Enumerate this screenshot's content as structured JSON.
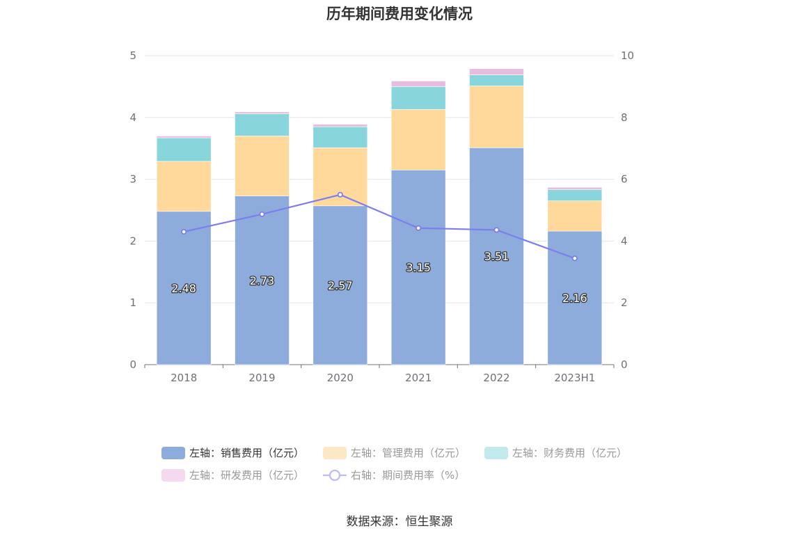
{
  "chart_data": {
    "type": "bar",
    "stacked": true,
    "title": "历年期间费用变化情况",
    "categories": [
      "2018",
      "2019",
      "2020",
      "2021",
      "2022",
      "2023H1"
    ],
    "y_left": {
      "range": [
        0,
        5
      ],
      "ticks": [
        "0",
        "1",
        "2",
        "3",
        "4",
        "5"
      ]
    },
    "y_right": {
      "range": [
        0,
        10
      ],
      "ticks": [
        "0",
        "2",
        "4",
        "6",
        "8",
        "10"
      ]
    },
    "grid": true,
    "series": [
      {
        "name": "左轴：销售费用（亿元）",
        "type": "bar",
        "axis": "left",
        "color": "#8eacdb",
        "values": [
          2.48,
          2.73,
          2.57,
          3.15,
          3.51,
          2.16
        ],
        "labels": [
          "2.48",
          "2.73",
          "2.57",
          "3.15",
          "3.51",
          "2.16"
        ]
      },
      {
        "name": "左轴：管理费用（亿元）",
        "type": "bar",
        "axis": "left",
        "color": "#ffd99b",
        "values": [
          0.81,
          0.97,
          0.94,
          0.98,
          1.0,
          0.49
        ]
      },
      {
        "name": "左轴：财务费用（亿元）",
        "type": "bar",
        "axis": "left",
        "color": "#88d6db",
        "values": [
          0.38,
          0.36,
          0.34,
          0.37,
          0.18,
          0.18
        ]
      },
      {
        "name": "左轴：研发费用（亿元）",
        "type": "bar",
        "axis": "left",
        "color": "#e6bde0",
        "values": [
          0.03,
          0.03,
          0.04,
          0.09,
          0.1,
          0.04
        ]
      },
      {
        "name": "右轴：期间费用率（%）",
        "type": "line",
        "axis": "right",
        "color": "#7b7ef0",
        "values": [
          4.3,
          4.87,
          5.5,
          4.42,
          4.36,
          3.44
        ]
      }
    ],
    "legend": {
      "position": "bottom",
      "items": [
        {
          "label": "左轴：销售费用（亿元）",
          "color": "#8eacdb",
          "shape": "rect",
          "active": true
        },
        {
          "label": "左轴：管理费用（亿元）",
          "color": "#fde8c6",
          "shape": "rect",
          "active": false
        },
        {
          "label": "左轴：财务费用（亿元）",
          "color": "#c2e9ec",
          "shape": "rect",
          "active": false
        },
        {
          "label": "左轴：研发费用（亿元）",
          "color": "#f4d9ef",
          "shape": "rect",
          "active": false
        },
        {
          "label": "右轴：期间费用率（%）",
          "color": "#b9bcf7",
          "shape": "line",
          "active": false
        }
      ]
    }
  },
  "source": "数据来源：恒生聚源"
}
